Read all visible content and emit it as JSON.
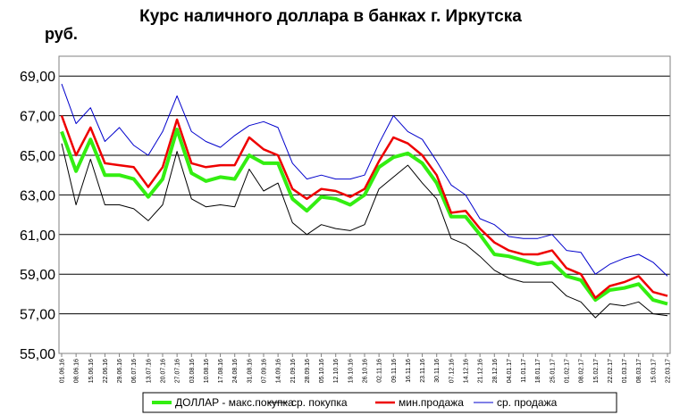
{
  "chart_data": {
    "type": "line",
    "title": "Курс наличного доллара  в банках г. Иркутска",
    "ylabel": "руб.",
    "xlabel": "",
    "ylim": [
      55,
      70
    ],
    "yticks": [
      "55,00",
      "57,00",
      "59,00",
      "61,00",
      "63,00",
      "65,00",
      "67,00",
      "69,00"
    ],
    "grid": "horizontal",
    "legend_position": "bottom",
    "x": [
      "01.06.16",
      "08.06.16",
      "15.06.16",
      "22.06.16",
      "29.06.16",
      "06.07.16",
      "13.07.16",
      "20.07.16",
      "27.07.16",
      "03.08.16",
      "10.08.16",
      "17.08.16",
      "24.08.16",
      "31.08.16",
      "07.09.16",
      "14.09.16",
      "21.09.16",
      "28.09.16",
      "05.10.16",
      "12.10.16",
      "19.10.16",
      "26.10.16",
      "02.11.16",
      "09.11.16",
      "16.11.16",
      "23.11.16",
      "30.11.16",
      "07.12.16",
      "14.12.16",
      "21.12.16",
      "28.12.16",
      "04.01.17",
      "11.01.17",
      "18.01.17",
      "25.01.17",
      "01.02.17",
      "08.02.17",
      "15.02.17",
      "22.02.17",
      "01.03.17",
      "08.03.17",
      "15.03.17",
      "22.03.17"
    ],
    "series": [
      {
        "name": "ДОЛЛАР - макс.покупка",
        "color": "#33ee11",
        "values": [
          66.2,
          64.2,
          65.8,
          64.0,
          64.0,
          63.8,
          62.9,
          63.8,
          66.3,
          64.1,
          63.7,
          63.9,
          63.8,
          65.0,
          64.6,
          64.6,
          62.8,
          62.2,
          62.9,
          62.8,
          62.5,
          63.0,
          64.4,
          64.9,
          65.1,
          64.6,
          63.6,
          61.9,
          61.9,
          61.0,
          60.0,
          59.9,
          59.7,
          59.5,
          59.6,
          58.9,
          58.7,
          57.7,
          58.2,
          58.3,
          58.5,
          57.7,
          57.5
        ]
      },
      {
        "name": "ср. покупка",
        "color": "#000000",
        "values": [
          65.6,
          62.5,
          64.8,
          62.5,
          62.5,
          62.3,
          61.7,
          62.5,
          65.2,
          62.8,
          62.4,
          62.5,
          62.4,
          64.3,
          63.2,
          63.6,
          61.6,
          61.0,
          61.5,
          61.3,
          61.2,
          61.5,
          63.3,
          63.9,
          64.5,
          63.6,
          62.8,
          60.8,
          60.5,
          59.9,
          59.2,
          58.8,
          58.6,
          58.6,
          58.6,
          57.9,
          57.6,
          56.8,
          57.5,
          57.4,
          57.6,
          57.0,
          56.9
        ]
      },
      {
        "name": "мин.продажа",
        "color": "#ee0000",
        "values": [
          67.0,
          65.0,
          66.4,
          64.6,
          64.5,
          64.4,
          63.4,
          64.4,
          66.8,
          64.6,
          64.4,
          64.5,
          64.5,
          65.9,
          65.3,
          65.0,
          63.3,
          62.8,
          63.3,
          63.2,
          62.9,
          63.3,
          64.7,
          65.9,
          65.6,
          65.0,
          64.0,
          62.1,
          62.2,
          61.3,
          60.6,
          60.2,
          60.0,
          60.0,
          60.2,
          59.3,
          59.0,
          57.8,
          58.4,
          58.6,
          58.9,
          58.1,
          57.9
        ]
      },
      {
        "name": "ср. продажа",
        "color": "#0000cc",
        "values": [
          68.6,
          66.6,
          67.4,
          65.7,
          66.4,
          65.5,
          65.0,
          66.2,
          68.0,
          66.2,
          65.7,
          65.4,
          66.0,
          66.5,
          66.7,
          66.4,
          64.6,
          63.8,
          64.0,
          63.8,
          63.8,
          64.0,
          65.6,
          67.0,
          66.2,
          65.8,
          64.7,
          63.5,
          63.0,
          61.8,
          61.5,
          60.9,
          60.8,
          60.8,
          61.0,
          60.2,
          60.1,
          59.0,
          59.5,
          59.8,
          60.0,
          59.6,
          58.9
        ]
      }
    ]
  }
}
